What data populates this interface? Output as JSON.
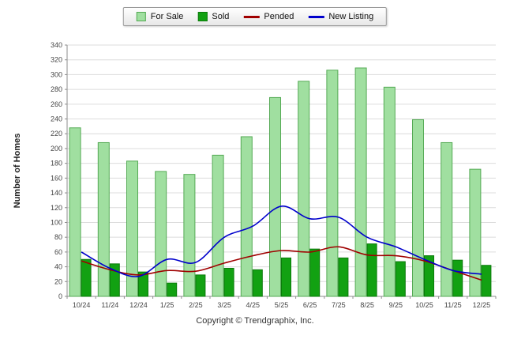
{
  "chart_data": {
    "type": "bar",
    "title": "",
    "categories": [
      "10/24",
      "11/24",
      "12/24",
      "1/25",
      "2/25",
      "3/25",
      "4/25",
      "5/25",
      "6/25",
      "7/25",
      "8/25",
      "9/25",
      "10/25",
      "11/25",
      "12/25"
    ],
    "series": [
      {
        "name": "For Sale",
        "type": "bar",
        "color": "#a0dfa0",
        "border": "#55aa55",
        "values": [
          228,
          208,
          183,
          169,
          165,
          191,
          216,
          269,
          291,
          306,
          309,
          283,
          239,
          208,
          172
        ]
      },
      {
        "name": "Sold",
        "type": "bar",
        "color": "#12a112",
        "border": "#0b7a0b",
        "values": [
          50,
          44,
          33,
          18,
          29,
          38,
          36,
          52,
          64,
          52,
          71,
          47,
          55,
          49,
          42
        ]
      },
      {
        "name": "Pended",
        "type": "line",
        "color": "#a00000",
        "values": [
          48,
          36,
          29,
          35,
          34,
          45,
          55,
          62,
          60,
          67,
          56,
          55,
          48,
          35,
          22
        ]
      },
      {
        "name": "New Listing",
        "type": "line",
        "color": "#0000cc",
        "values": [
          60,
          38,
          27,
          50,
          46,
          80,
          95,
          122,
          105,
          107,
          80,
          67,
          50,
          35,
          30
        ]
      }
    ],
    "xlabel": "",
    "ylabel": "Number of Homes",
    "ylim": [
      0,
      340
    ],
    "ytick_step": 20,
    "grid": true,
    "legend_position": "top",
    "grid_color": "#dcdcdc",
    "axis_color": "#8c8c8c",
    "tick_label_color": "#444444"
  },
  "footer": {
    "copyright": "Copyright © Trendgraphix, Inc."
  }
}
